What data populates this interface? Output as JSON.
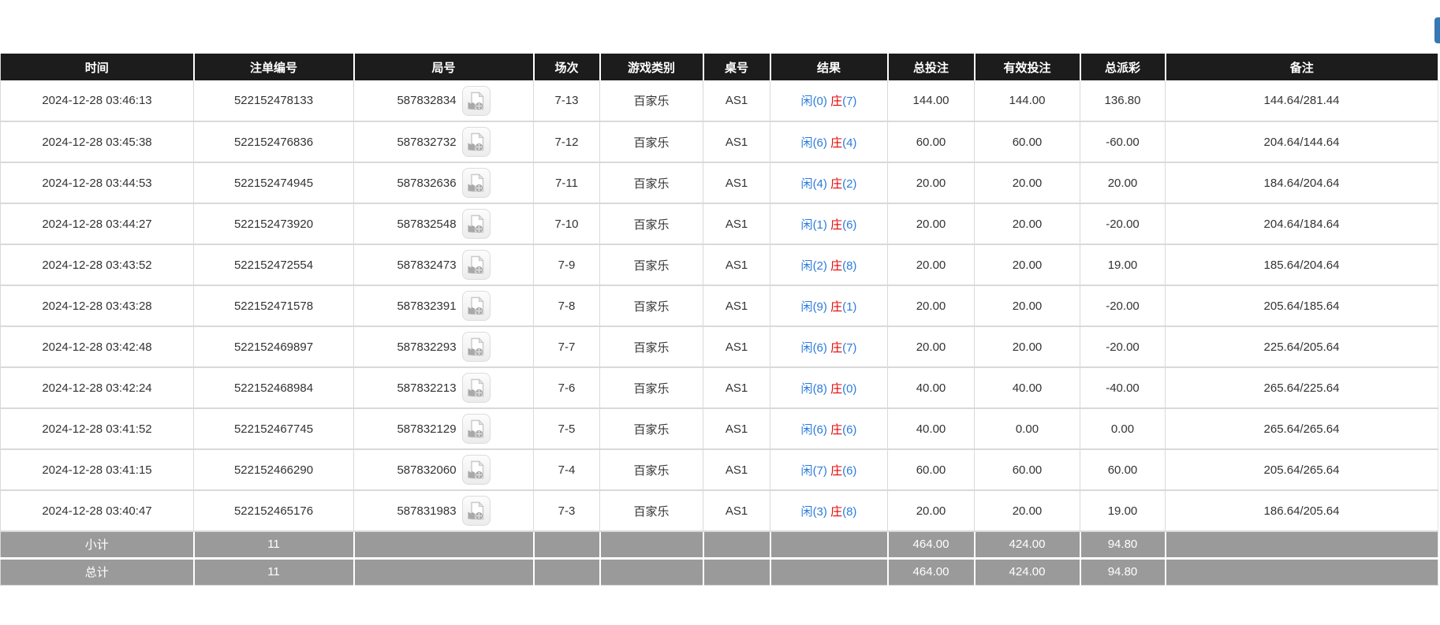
{
  "colors": {
    "accent_blue": "#2b7bda",
    "negative_red": "#e60000",
    "header_bg": "#1c1c1c",
    "summary_bg": "#9a9a9a",
    "action_button_blue": "#3478b5"
  },
  "top_bar": {
    "action_button": "partially-offscreen-blue-button"
  },
  "icons": {
    "round_cell_icon": "video-replay-icon"
  },
  "table": {
    "columns": [
      {
        "key": "time",
        "label": "时间"
      },
      {
        "key": "bet_id",
        "label": "注单编号"
      },
      {
        "key": "round_id",
        "label": "局号"
      },
      {
        "key": "session",
        "label": "场次"
      },
      {
        "key": "game_type",
        "label": "游戏类别"
      },
      {
        "key": "table_no",
        "label": "桌号"
      },
      {
        "key": "result",
        "label": "结果"
      },
      {
        "key": "total_bet",
        "label": "总投注"
      },
      {
        "key": "valid_bet",
        "label": "有效投注"
      },
      {
        "key": "payout",
        "label": "总派彩"
      },
      {
        "key": "remark",
        "label": "备注"
      }
    ],
    "rows": [
      {
        "time": "2024-12-28 03:46:13",
        "bet_id": "522152478133",
        "round_id": "587832834",
        "session": "7-13",
        "game_type": "百家乐",
        "table_no": "AS1",
        "result": {
          "player": "闲",
          "player_score": "(0)",
          "banker": "庄",
          "banker_score": "(7)"
        },
        "total_bet": "144.00",
        "valid_bet": "144.00",
        "payout": "136.80",
        "remark": "144.64/281.44"
      },
      {
        "time": "2024-12-28 03:45:38",
        "bet_id": "522152476836",
        "round_id": "587832732",
        "session": "7-12",
        "game_type": "百家乐",
        "table_no": "AS1",
        "result": {
          "player": "闲",
          "player_score": "(6)",
          "banker": "庄",
          "banker_score": "(4)"
        },
        "total_bet": "60.00",
        "valid_bet": "60.00",
        "payout": "-60.00",
        "remark": "204.64/144.64"
      },
      {
        "time": "2024-12-28 03:44:53",
        "bet_id": "522152474945",
        "round_id": "587832636",
        "session": "7-11",
        "game_type": "百家乐",
        "table_no": "AS1",
        "result": {
          "player": "闲",
          "player_score": "(4)",
          "banker": "庄",
          "banker_score": "(2)"
        },
        "total_bet": "20.00",
        "valid_bet": "20.00",
        "payout": "20.00",
        "remark": "184.64/204.64"
      },
      {
        "time": "2024-12-28 03:44:27",
        "bet_id": "522152473920",
        "round_id": "587832548",
        "session": "7-10",
        "game_type": "百家乐",
        "table_no": "AS1",
        "result": {
          "player": "闲",
          "player_score": "(1)",
          "banker": "庄",
          "banker_score": "(6)"
        },
        "total_bet": "20.00",
        "valid_bet": "20.00",
        "payout": "-20.00",
        "remark": "204.64/184.64"
      },
      {
        "time": "2024-12-28 03:43:52",
        "bet_id": "522152472554",
        "round_id": "587832473",
        "session": "7-9",
        "game_type": "百家乐",
        "table_no": "AS1",
        "result": {
          "player": "闲",
          "player_score": "(2)",
          "banker": "庄",
          "banker_score": "(8)"
        },
        "total_bet": "20.00",
        "valid_bet": "20.00",
        "payout": "19.00",
        "remark": "185.64/204.64"
      },
      {
        "time": "2024-12-28 03:43:28",
        "bet_id": "522152471578",
        "round_id": "587832391",
        "session": "7-8",
        "game_type": "百家乐",
        "table_no": "AS1",
        "result": {
          "player": "闲",
          "player_score": "(9)",
          "banker": "庄",
          "banker_score": "(1)"
        },
        "total_bet": "20.00",
        "valid_bet": "20.00",
        "payout": "-20.00",
        "remark": "205.64/185.64"
      },
      {
        "time": "2024-12-28 03:42:48",
        "bet_id": "522152469897",
        "round_id": "587832293",
        "session": "7-7",
        "game_type": "百家乐",
        "table_no": "AS1",
        "result": {
          "player": "闲",
          "player_score": "(6)",
          "banker": "庄",
          "banker_score": "(7)"
        },
        "total_bet": "20.00",
        "valid_bet": "20.00",
        "payout": "-20.00",
        "remark": "225.64/205.64"
      },
      {
        "time": "2024-12-28 03:42:24",
        "bet_id": "522152468984",
        "round_id": "587832213",
        "session": "7-6",
        "game_type": "百家乐",
        "table_no": "AS1",
        "result": {
          "player": "闲",
          "player_score": "(8)",
          "banker": "庄",
          "banker_score": "(0)"
        },
        "total_bet": "40.00",
        "valid_bet": "40.00",
        "payout": "-40.00",
        "remark": "265.64/225.64"
      },
      {
        "time": "2024-12-28 03:41:52",
        "bet_id": "522152467745",
        "round_id": "587832129",
        "session": "7-5",
        "game_type": "百家乐",
        "table_no": "AS1",
        "result": {
          "player": "闲",
          "player_score": "(6)",
          "banker": "庄",
          "banker_score": "(6)"
        },
        "total_bet": "40.00",
        "valid_bet": "0.00",
        "payout": "0.00",
        "remark": "265.64/265.64"
      },
      {
        "time": "2024-12-28 03:41:15",
        "bet_id": "522152466290",
        "round_id": "587832060",
        "session": "7-4",
        "game_type": "百家乐",
        "table_no": "AS1",
        "result": {
          "player": "闲",
          "player_score": "(7)",
          "banker": "庄",
          "banker_score": "(6)"
        },
        "total_bet": "60.00",
        "valid_bet": "60.00",
        "payout": "60.00",
        "remark": "205.64/265.64"
      },
      {
        "time": "2024-12-28 03:40:47",
        "bet_id": "522152465176",
        "round_id": "587831983",
        "session": "7-3",
        "game_type": "百家乐",
        "table_no": "AS1",
        "result": {
          "player": "闲",
          "player_score": "(3)",
          "banker": "庄",
          "banker_score": "(8)"
        },
        "total_bet": "20.00",
        "valid_bet": "20.00",
        "payout": "19.00",
        "remark": "186.64/205.64"
      }
    ],
    "summary_rows": [
      {
        "name": "subtotal-row",
        "label": "小计",
        "count": "11",
        "total_bet": "464.00",
        "valid_bet": "424.00",
        "payout": "94.80"
      },
      {
        "name": "grandtotal-row",
        "label": "总计",
        "count": "11",
        "total_bet": "464.00",
        "valid_bet": "424.00",
        "payout": "94.80"
      }
    ]
  }
}
